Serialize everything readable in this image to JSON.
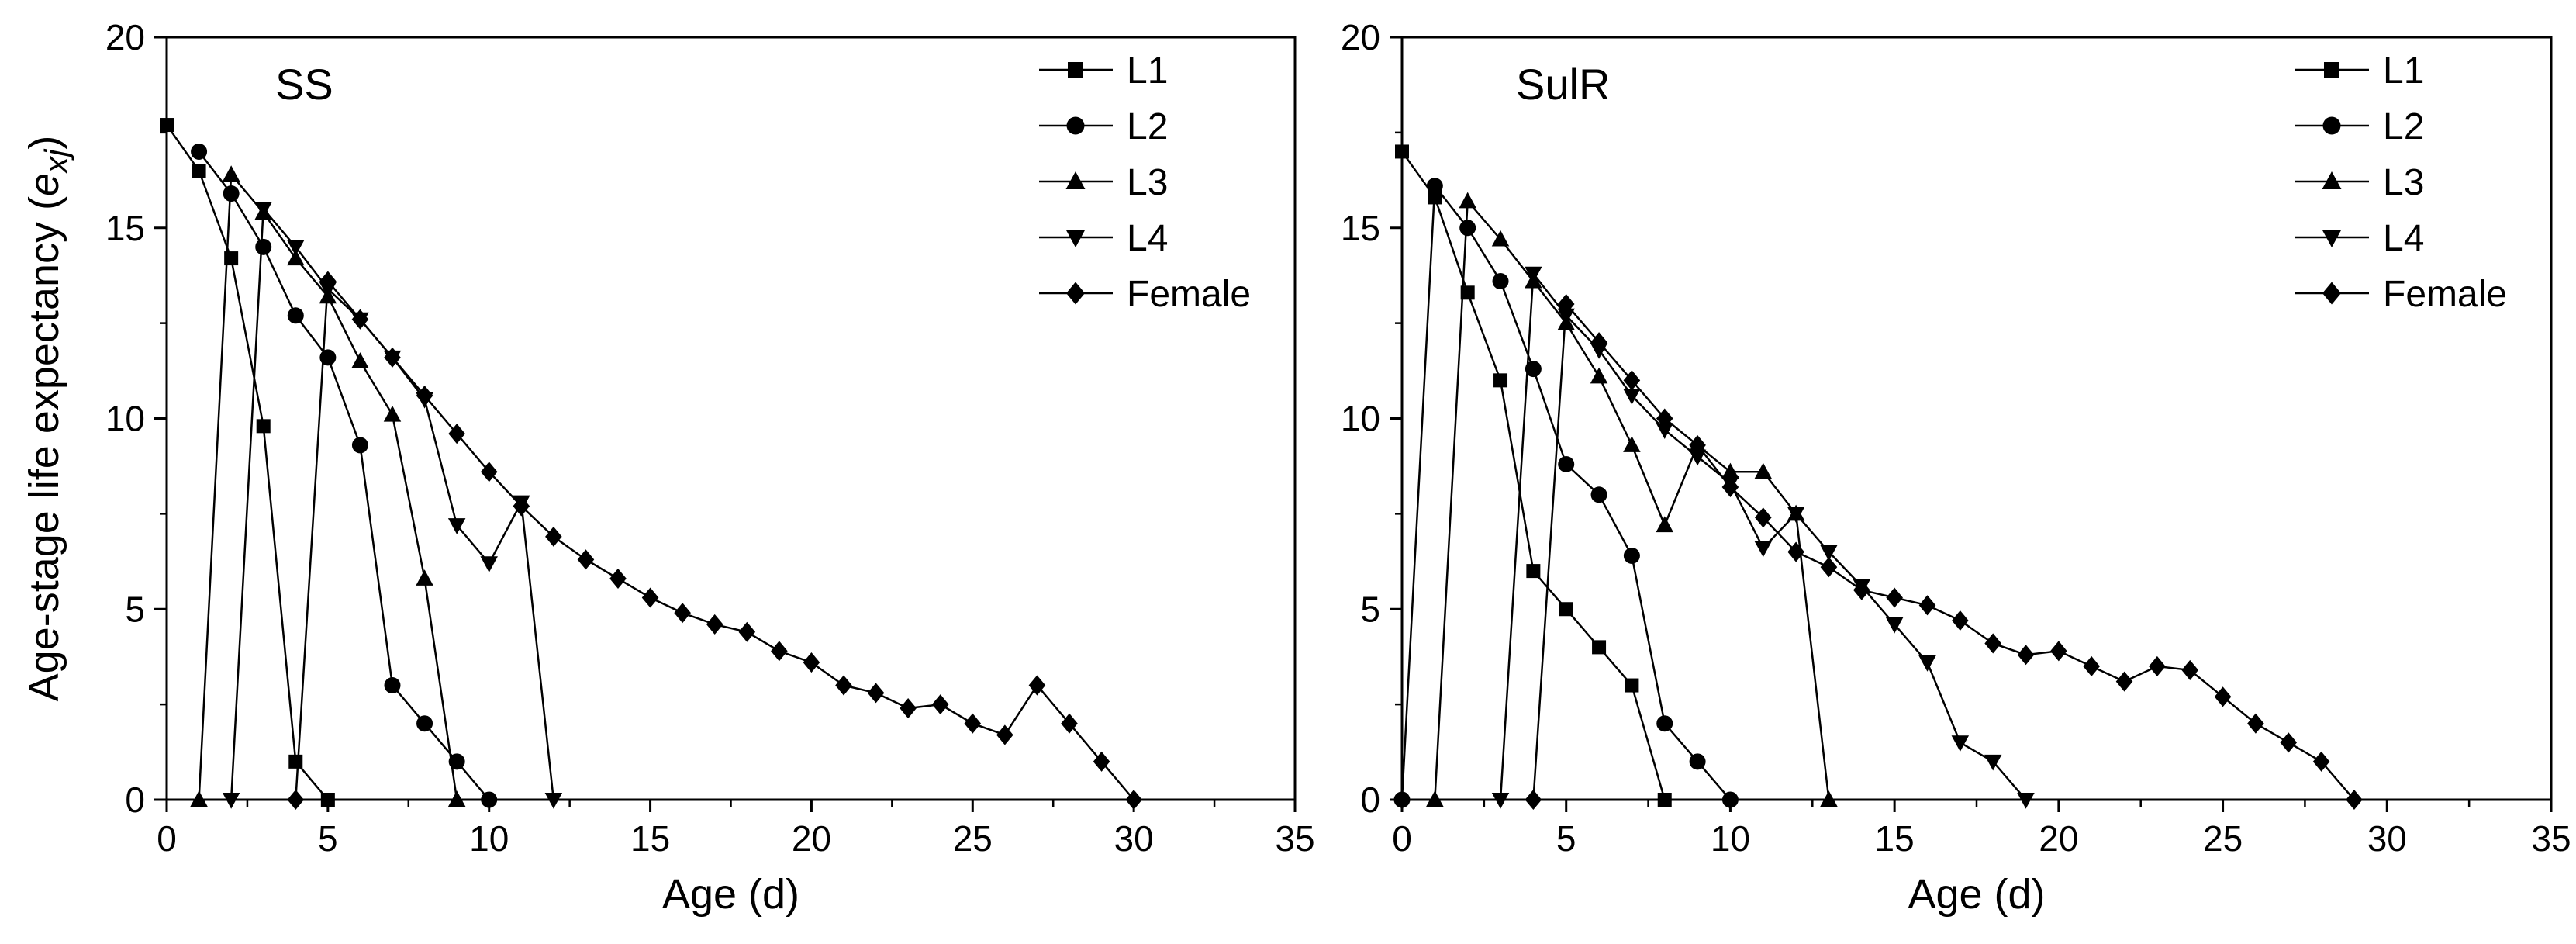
{
  "chart_data": [
    {
      "type": "line",
      "title": "SS",
      "xlabel": "Age (d)",
      "ylabel": "Age-stage life expectancy",
      "ylabel_symbol": "e",
      "ylabel_subscript": "xj",
      "xlim": [
        0,
        35
      ],
      "ylim": [
        0,
        20
      ],
      "xticks": [
        0,
        5,
        10,
        15,
        20,
        25,
        30,
        35
      ],
      "yticks": [
        0,
        5,
        10,
        15,
        20
      ],
      "legend_position": "top-right",
      "series": [
        {
          "name": "L1",
          "marker": "square",
          "x": [
            0,
            1,
            2,
            3,
            4,
            5
          ],
          "y": [
            17.7,
            16.5,
            14.2,
            9.8,
            1.0,
            0.0
          ]
        },
        {
          "name": "L2",
          "marker": "circle",
          "x": [
            1,
            2,
            3,
            4,
            5,
            6,
            7,
            8,
            9,
            10
          ],
          "y": [
            17.0,
            15.9,
            14.5,
            12.7,
            11.6,
            9.3,
            3.0,
            2.0,
            1.0,
            0.0
          ]
        },
        {
          "name": "L3",
          "marker": "triangle-up",
          "x": [
            1,
            2,
            3,
            4,
            5,
            6,
            7,
            8,
            9
          ],
          "y": [
            0.0,
            16.4,
            15.4,
            14.2,
            13.2,
            11.5,
            10.1,
            5.8,
            0.0
          ]
        },
        {
          "name": "L4",
          "marker": "triangle-down",
          "x": [
            2,
            3,
            4,
            5,
            6,
            7,
            8,
            9,
            10,
            11,
            12
          ],
          "y": [
            0.0,
            15.5,
            14.5,
            13.4,
            12.6,
            11.6,
            10.5,
            7.2,
            6.2,
            7.8,
            0.0
          ]
        },
        {
          "name": "Female",
          "marker": "diamond",
          "x": [
            4,
            5,
            6,
            7,
            8,
            9,
            10,
            11,
            12,
            13,
            14,
            15,
            16,
            17,
            18,
            19,
            20,
            21,
            22,
            23,
            24,
            25,
            26,
            27,
            28,
            29,
            30
          ],
          "y": [
            0.0,
            13.6,
            12.6,
            11.6,
            10.6,
            9.6,
            8.6,
            7.7,
            6.9,
            6.3,
            5.8,
            5.3,
            4.9,
            4.6,
            4.4,
            3.9,
            3.6,
            3.0,
            2.8,
            2.4,
            2.5,
            2.0,
            1.7,
            3.0,
            2.0,
            1.0,
            0.0
          ]
        }
      ]
    },
    {
      "type": "line",
      "title": "SulR",
      "xlabel": "Age (d)",
      "ylabel": "",
      "xlim": [
        0,
        35
      ],
      "ylim": [
        0,
        20
      ],
      "xticks": [
        0,
        5,
        10,
        15,
        20,
        25,
        30,
        35
      ],
      "yticks": [
        0,
        5,
        10,
        15,
        20
      ],
      "legend_position": "top-right",
      "series": [
        {
          "name": "L1",
          "marker": "square",
          "x": [
            0,
            1,
            2,
            3,
            4,
            5,
            6,
            7,
            8
          ],
          "y": [
            17.0,
            15.8,
            13.3,
            11.0,
            6.0,
            5.0,
            4.0,
            3.0,
            0.0
          ]
        },
        {
          "name": "L2",
          "marker": "circle",
          "x": [
            0,
            1,
            2,
            3,
            4,
            5,
            6,
            7,
            8,
            9,
            10
          ],
          "y": [
            0.0,
            16.1,
            15.0,
            13.6,
            11.3,
            8.8,
            8.0,
            6.4,
            2.0,
            1.0,
            0.0
          ]
        },
        {
          "name": "L3",
          "marker": "triangle-up",
          "x": [
            1,
            2,
            3,
            4,
            5,
            6,
            7,
            8,
            9,
            10,
            11,
            12,
            13
          ],
          "y": [
            0.0,
            15.7,
            14.7,
            13.6,
            12.5,
            11.1,
            9.3,
            7.2,
            9.3,
            8.6,
            8.6,
            7.5,
            0.0
          ]
        },
        {
          "name": "L4",
          "marker": "triangle-down",
          "x": [
            3,
            4,
            5,
            6,
            7,
            8,
            9,
            10,
            11,
            12,
            13,
            14,
            15,
            16,
            17,
            18,
            19
          ],
          "y": [
            0.0,
            13.8,
            12.7,
            11.8,
            10.6,
            9.7,
            9.0,
            8.3,
            6.6,
            7.5,
            6.5,
            5.6,
            4.6,
            3.6,
            1.5,
            1.0,
            0.0
          ]
        },
        {
          "name": "Female",
          "marker": "diamond",
          "x": [
            4,
            5,
            6,
            7,
            8,
            9,
            10,
            11,
            12,
            13,
            14,
            15,
            16,
            17,
            18,
            19,
            20,
            21,
            22,
            23,
            24,
            25,
            26,
            27,
            28,
            29
          ],
          "y": [
            0.0,
            13.0,
            12.0,
            11.0,
            10.0,
            9.3,
            8.2,
            7.4,
            6.5,
            6.1,
            5.5,
            5.3,
            5.1,
            4.7,
            4.1,
            3.8,
            3.9,
            3.5,
            3.1,
            3.5,
            3.4,
            2.7,
            2.0,
            1.5,
            1.0,
            0.0
          ]
        }
      ]
    }
  ]
}
